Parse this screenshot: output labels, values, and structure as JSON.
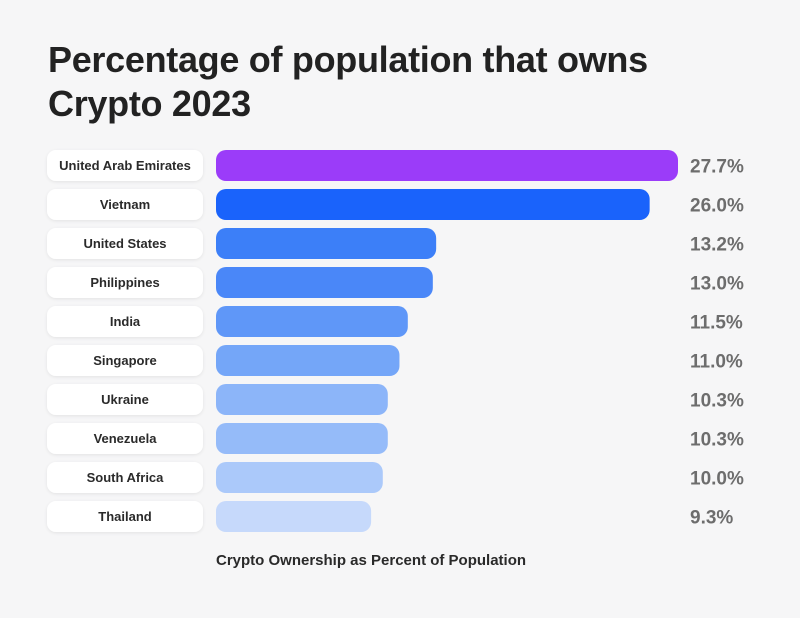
{
  "chart_data": {
    "type": "bar",
    "orientation": "horizontal",
    "title": "Percentage of population that owns Crypto 2023",
    "xlabel": "Crypto Ownership as Percent of Population",
    "ylabel": "",
    "categories": [
      "United Arab Emirates",
      "Vietnam",
      "United States",
      "Philippines",
      "India",
      "Singapore",
      "Ukraine",
      "Venezuela",
      "South Africa",
      "Thailand"
    ],
    "values": [
      27.7,
      26.0,
      13.2,
      13.0,
      11.5,
      11.0,
      10.3,
      10.3,
      10.0,
      9.3
    ],
    "value_labels": [
      "27.7%",
      "26.0%",
      "13.2%",
      "13.0%",
      "11.5%",
      "11.0%",
      "10.3%",
      "10.3%",
      "10.0%",
      "9.3%"
    ],
    "xlim": [
      0,
      27.7
    ],
    "grid": false,
    "legend": "none",
    "colors": [
      "#9b3cf9",
      "#1a63fb",
      "#3c7ff8",
      "#4a87f8",
      "#5f97f8",
      "#74a6f8",
      "#8cb5f9",
      "#95bbf9",
      "#abc9fa",
      "#c6d9fb"
    ]
  }
}
